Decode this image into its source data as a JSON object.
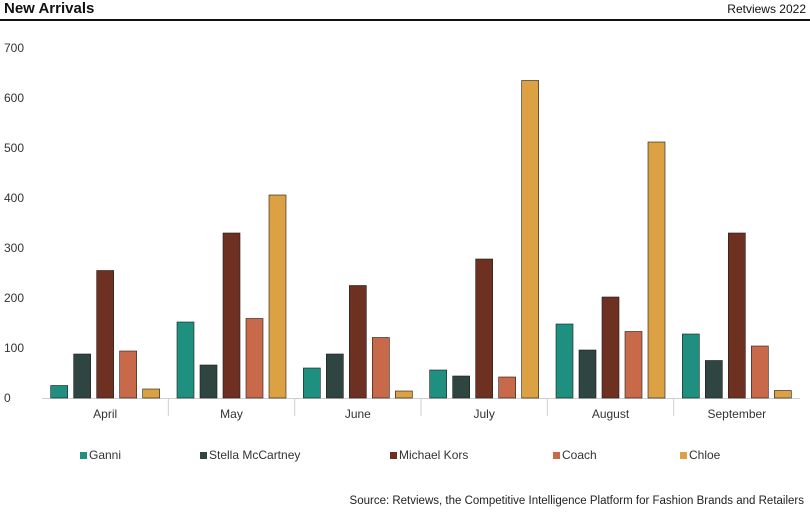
{
  "header": {
    "title": "New Arrivals",
    "brand": "Retviews 2022"
  },
  "source": "Source: Retviews, the Competitive Intelligence Platform for Fashion Brands and Retailers",
  "chart_data": {
    "type": "bar",
    "title": "New Arrivals",
    "xlabel": "",
    "ylabel": "",
    "ylim": [
      0,
      700
    ],
    "yticks": [
      0,
      100,
      200,
      300,
      400,
      500,
      600,
      700
    ],
    "grid": false,
    "legend": "bottom",
    "categories": [
      "April",
      "May",
      "June",
      "July",
      "August",
      "September"
    ],
    "series": [
      {
        "name": "Ganni",
        "color": "#1f8f7f",
        "values": [
          25,
          152,
          60,
          56,
          148,
          128
        ]
      },
      {
        "name": "Stella McCartney",
        "color": "#2e4541",
        "values": [
          88,
          66,
          88,
          44,
          96,
          75
        ]
      },
      {
        "name": "Michael Kors",
        "color": "#6e3020",
        "values": [
          255,
          330,
          225,
          278,
          202,
          330
        ]
      },
      {
        "name": "Coach",
        "color": "#c8694a",
        "values": [
          94,
          159,
          121,
          42,
          133,
          104
        ]
      },
      {
        "name": "Chloe",
        "color": "#dca142",
        "values": [
          18,
          406,
          14,
          635,
          512,
          15
        ]
      }
    ]
  }
}
